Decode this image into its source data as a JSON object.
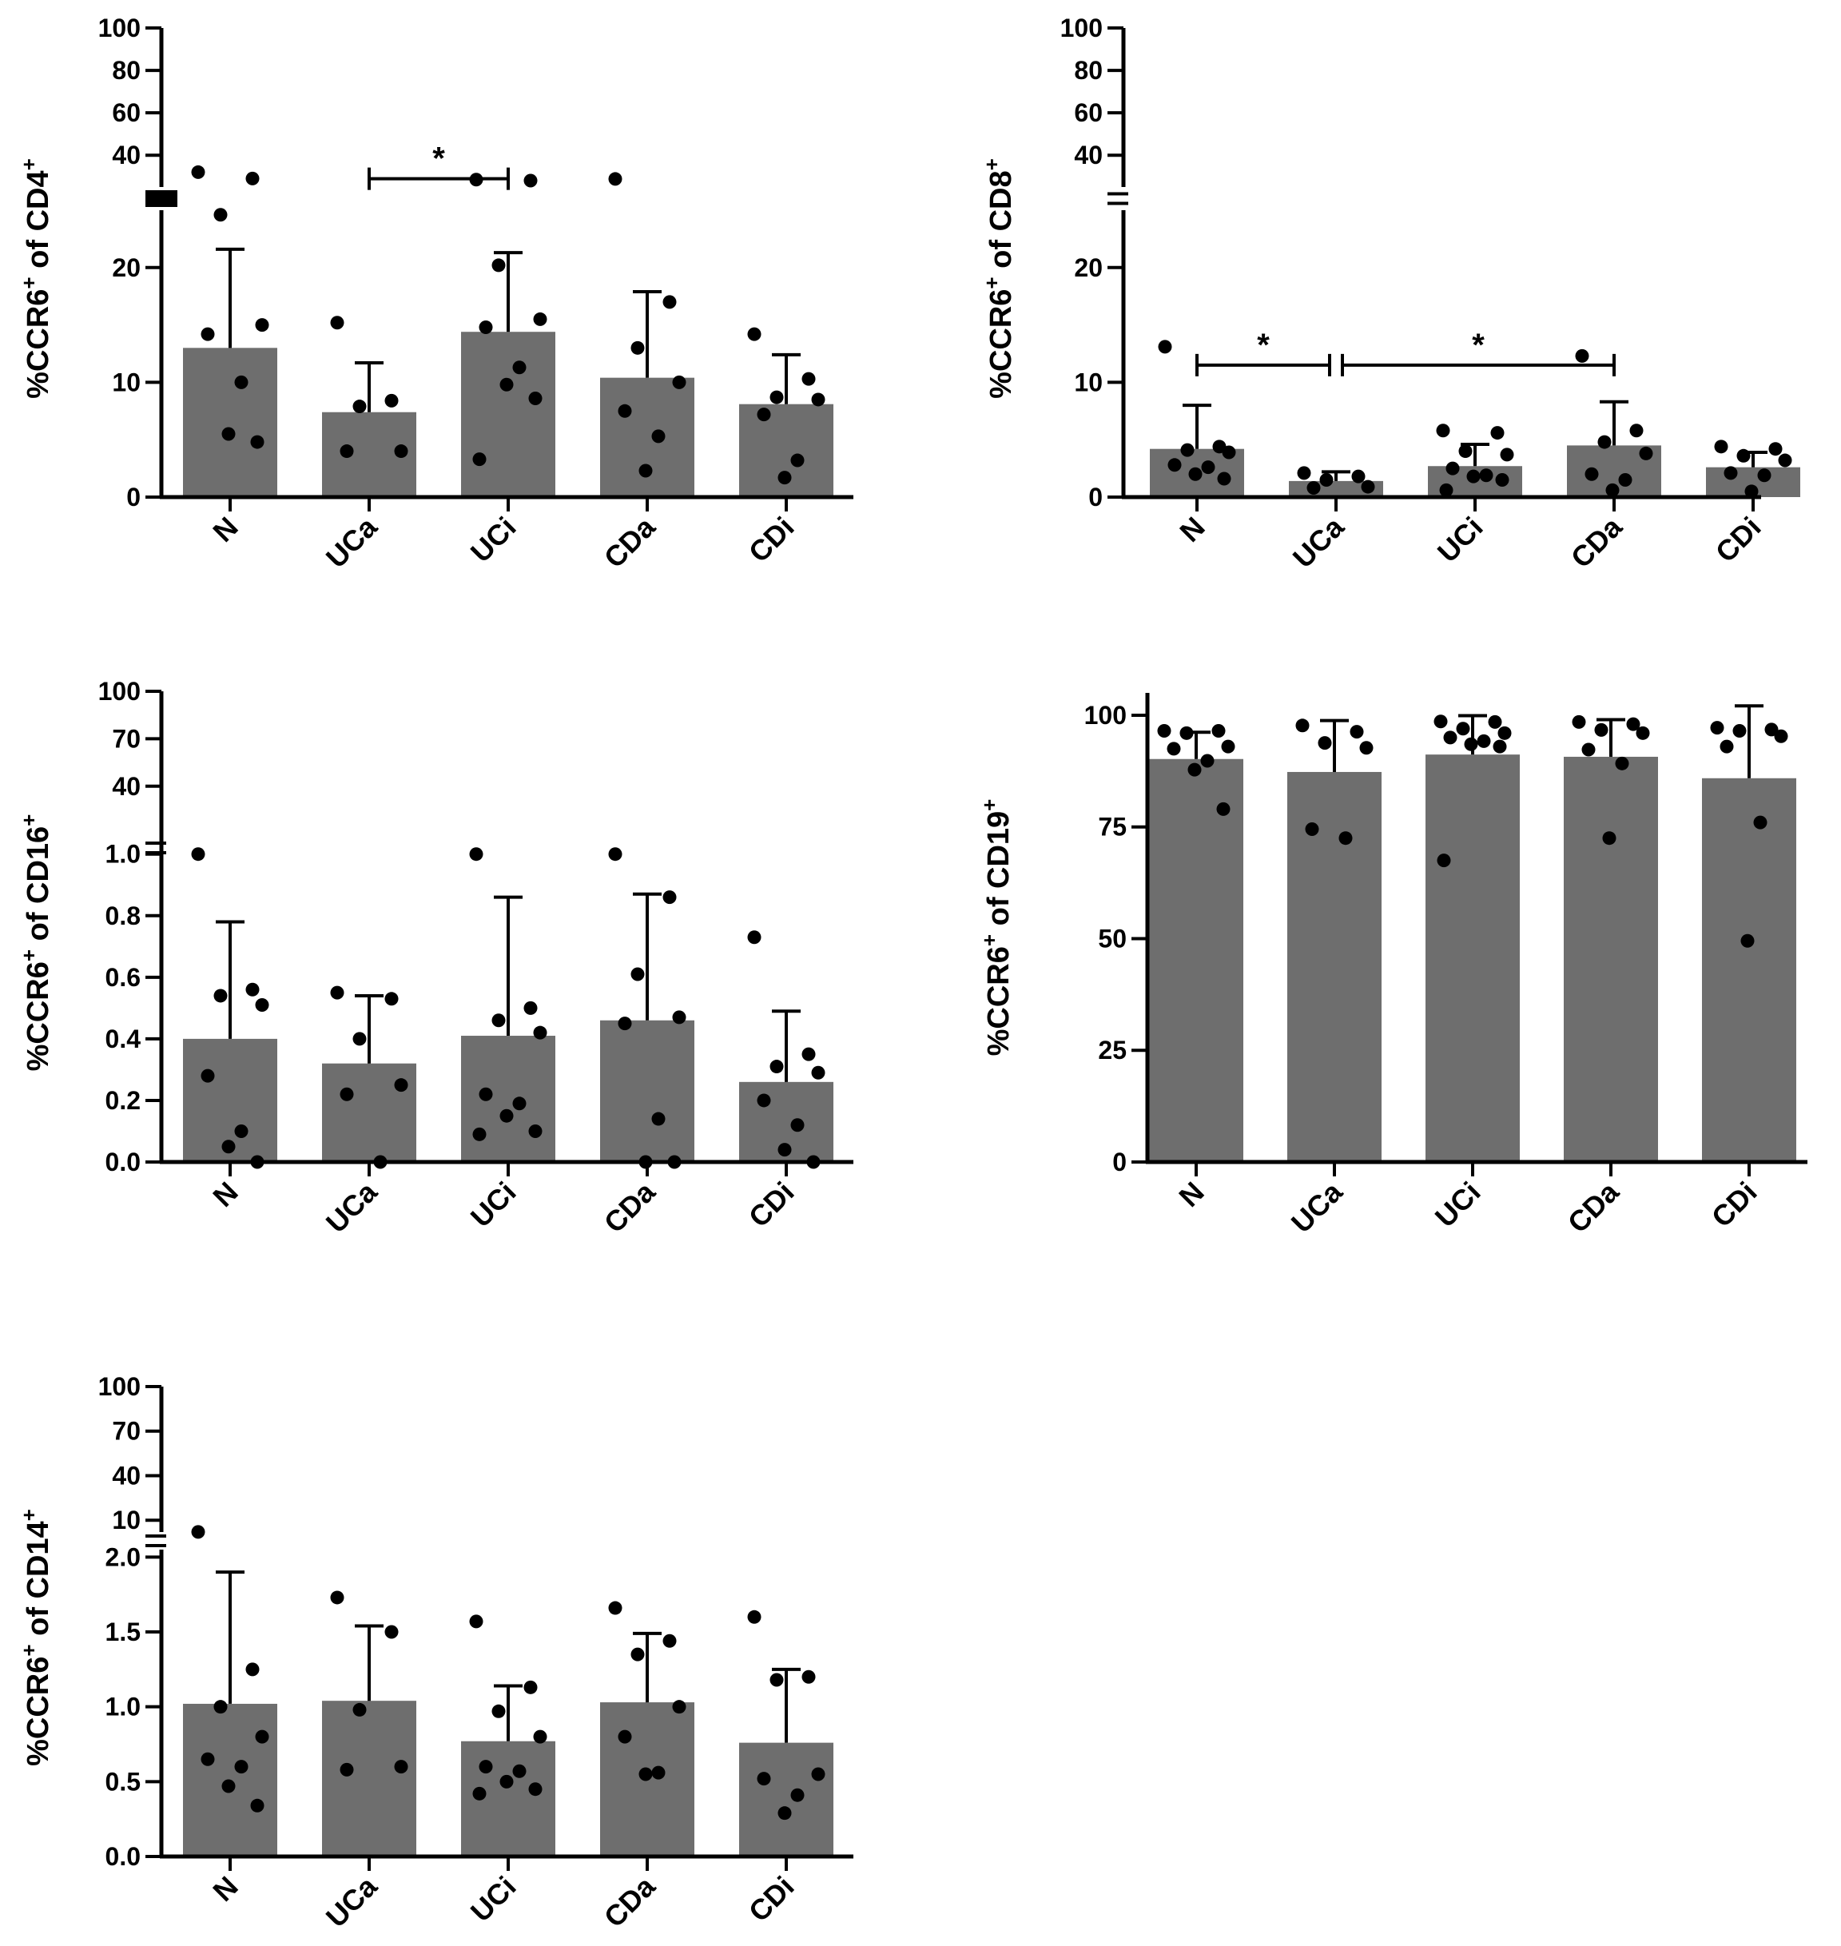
{
  "colors": {
    "bar": "#6e6e6e",
    "axis": "#000000",
    "point": "#000000"
  },
  "categories": [
    "N",
    "UCa",
    "UCi",
    "CDa",
    "CDi"
  ],
  "chart_data": [
    {
      "id": "cd4",
      "type": "bar",
      "ylabel_prefix": "%CCR6",
      "ylabel_suffix": " of CD4",
      "ylabel_sup": "+",
      "categories": [
        "N",
        "UCa",
        "UCi",
        "CDa",
        "CDi"
      ],
      "axis_break": true,
      "lower_range": [
        0,
        25
      ],
      "lower_ticks": [
        0,
        10,
        20
      ],
      "lower_tick_labels": [
        "0",
        "10",
        "20"
      ],
      "upper_range": [
        25,
        100
      ],
      "upper_ticks": [
        40,
        60,
        80,
        100
      ],
      "upper_tick_labels": [
        "40",
        "60",
        "80",
        "100"
      ],
      "means": [
        13,
        7.4,
        14.4,
        10.4,
        8.1
      ],
      "sd": [
        8.6,
        4.3,
        6.9,
        7.5,
        4.3
      ],
      "points": [
        [
          32,
          29,
          24.6,
          15,
          14.2,
          10,
          5.5,
          4.8
        ],
        [
          15.2,
          8.4,
          7.9,
          4,
          4
        ],
        [
          28.5,
          28,
          20.2,
          15.5,
          14.8,
          11.3,
          9.8,
          8.6,
          3.3
        ],
        [
          28.8,
          17,
          13,
          10,
          7.5,
          5.3,
          2.3
        ],
        [
          14.2,
          10.3,
          8.7,
          8.5,
          7.2,
          3.2,
          1.7
        ]
      ],
      "significance": [
        {
          "from": 1,
          "to": 2,
          "label": "*"
        }
      ]
    },
    {
      "id": "cd8",
      "type": "bar",
      "ylabel_prefix": "%CCR6",
      "ylabel_suffix": " of CD8",
      "ylabel_sup": "+",
      "categories": [
        "N",
        "UCa",
        "UCi",
        "CDa",
        "CDi"
      ],
      "axis_break": true,
      "lower_range": [
        0,
        25
      ],
      "lower_ticks": [
        0,
        10,
        20
      ],
      "lower_tick_labels": [
        "0",
        "10",
        "20"
      ],
      "upper_range": [
        25,
        100
      ],
      "upper_ticks": [
        40,
        60,
        80,
        100
      ],
      "upper_tick_labels": [
        "40",
        "60",
        "80",
        "100"
      ],
      "means": [
        4.2,
        1.4,
        2.7,
        4.5,
        2.6
      ],
      "sd": [
        3.8,
        0.8,
        1.9,
        3.8,
        1.3
      ],
      "points": [
        [
          13.1,
          4.4,
          4.1,
          3.9,
          2.8,
          2.6,
          2,
          1.6
        ],
        [
          2.1,
          1.8,
          1.5,
          0.9,
          0.8
        ],
        [
          5.8,
          5.6,
          4,
          3.7,
          2.5,
          1.9,
          1.8,
          1.5,
          0.6
        ],
        [
          12.3,
          5.8,
          4.8,
          3.8,
          2,
          1.5,
          0.6
        ],
        [
          4.4,
          4.2,
          3.6,
          3.2,
          2.1,
          1.9,
          0.5
        ]
      ],
      "significance": [
        {
          "from": 0,
          "to": 1,
          "label": "*"
        },
        {
          "from": 1,
          "to": 3,
          "label": "*"
        }
      ]
    },
    {
      "id": "cd16",
      "type": "bar",
      "ylabel_prefix": "%CCR6",
      "ylabel_suffix": " of CD16",
      "ylabel_sup": "+",
      "categories": [
        "N",
        "UCa",
        "UCi",
        "CDa",
        "CDi"
      ],
      "axis_break": true,
      "lower_range": [
        0,
        1.02
      ],
      "lower_ticks": [
        0,
        0.2,
        0.4,
        0.6,
        0.8,
        1.0
      ],
      "lower_tick_labels": [
        "0.0",
        "0.2",
        "0.4",
        "0.6",
        "0.8",
        "1.0"
      ],
      "upper_range": [
        1.02,
        100
      ],
      "upper_ticks": [
        40,
        70,
        100
      ],
      "upper_tick_labels": [
        "40",
        "70",
        "100"
      ],
      "means": [
        0.4,
        0.32,
        0.41,
        0.46,
        0.26
      ],
      "sd": [
        0.38,
        0.22,
        0.45,
        0.41,
        0.23
      ],
      "points": [
        [
          1.0,
          0.56,
          0.54,
          0.51,
          0.28,
          0.1,
          0.05,
          0.0
        ],
        [
          0.55,
          0.53,
          0.4,
          0.25,
          0.22,
          0.0
        ],
        [
          1.0,
          0.5,
          0.46,
          0.42,
          0.22,
          0.19,
          0.15,
          0.1,
          0.09
        ],
        [
          1.0,
          0.86,
          0.61,
          0.47,
          0.45,
          0.14,
          0.0,
          0.0
        ],
        [
          0.73,
          0.35,
          0.31,
          0.29,
          0.2,
          0.12,
          0.04,
          0.0
        ]
      ],
      "significance": []
    },
    {
      "id": "cd19",
      "type": "bar",
      "ylabel_prefix": "%CCR6",
      "ylabel_suffix": " of CD19",
      "ylabel_sup": "+",
      "categories": [
        "N",
        "UCa",
        "UCi",
        "CDa",
        "CDi"
      ],
      "axis_break": false,
      "lower_range": [
        0,
        105
      ],
      "lower_ticks": [
        0,
        25,
        50,
        75,
        100
      ],
      "lower_tick_labels": [
        "0",
        "25",
        "50",
        "75",
        "100"
      ],
      "means": [
        90.2,
        87.3,
        91.2,
        90.7,
        85.9
      ],
      "sd": [
        6,
        11.5,
        8.7,
        8.3,
        16.2
      ],
      "points": [
        [
          96.5,
          96.5,
          96,
          93,
          92.5,
          89.8,
          87.8,
          79
        ],
        [
          97.7,
          96.3,
          93.8,
          92.7,
          74.5,
          72.5
        ],
        [
          98.6,
          98.5,
          97,
          96,
          95,
          94.2,
          93.5,
          93,
          67.5
        ],
        [
          98.5,
          98,
          96.7,
          96,
          92.3,
          89.2,
          72.5
        ],
        [
          97.2,
          96.8,
          96.5,
          95.3,
          93,
          76,
          49.5
        ]
      ],
      "significance": []
    },
    {
      "id": "cd14",
      "type": "bar",
      "ylabel_prefix": "%CCR6",
      "ylabel_suffix": " of CD14",
      "ylabel_sup": "+",
      "categories": [
        "N",
        "UCa",
        "UCi",
        "CDa",
        "CDi"
      ],
      "axis_break": true,
      "lower_range": [
        0,
        2.05
      ],
      "lower_ticks": [
        0,
        0.5,
        1.0,
        1.5,
        2.0
      ],
      "lower_tick_labels": [
        "0.0",
        "0.5",
        "1.0",
        "1.5",
        "2.0"
      ],
      "upper_range": [
        2.05,
        100
      ],
      "upper_ticks": [
        10,
        40,
        70,
        100
      ],
      "upper_tick_labels": [
        "10",
        "40",
        "70",
        "100"
      ],
      "means": [
        1.02,
        1.04,
        0.77,
        1.03,
        0.76
      ],
      "sd": [
        0.88,
        0.5,
        0.37,
        0.46,
        0.49
      ],
      "points": [
        [
          2.1,
          1.25,
          1.0,
          0.8,
          0.65,
          0.6,
          0.47,
          0.34
        ],
        [
          1.73,
          1.5,
          0.98,
          0.6,
          0.58
        ],
        [
          1.57,
          1.13,
          0.97,
          0.8,
          0.6,
          0.57,
          0.5,
          0.45,
          0.42
        ],
        [
          1.66,
          1.44,
          1.35,
          1.0,
          0.8,
          0.56,
          0.55
        ],
        [
          1.6,
          1.2,
          1.18,
          0.55,
          0.52,
          0.41,
          0.29
        ]
      ],
      "significance": []
    }
  ]
}
